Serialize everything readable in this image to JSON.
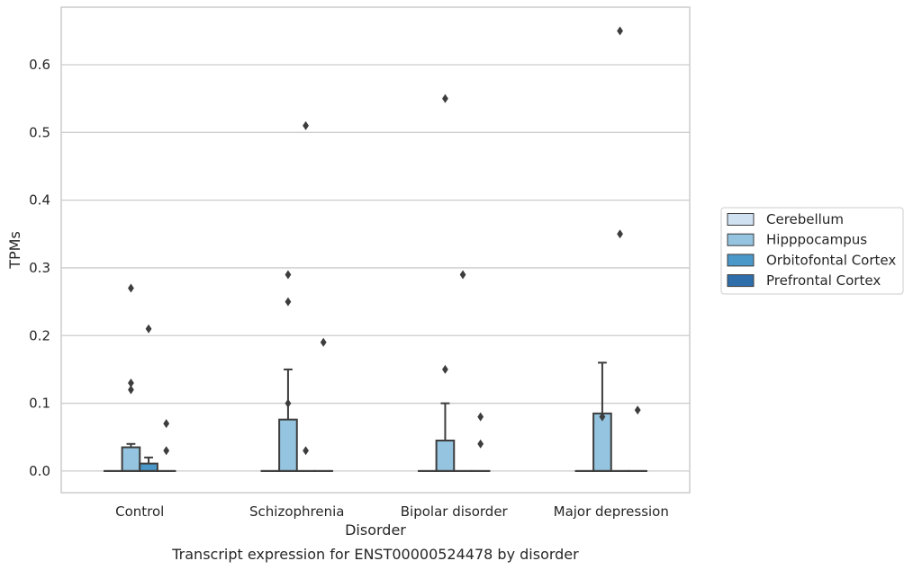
{
  "chart_data": {
    "type": "box",
    "title": "Transcript expression for ENST00000524478 by disorder",
    "xlabel": "Disorder",
    "ylabel": "TPMs",
    "ylim": [
      -0.032,
      0.685
    ],
    "yticks": [
      0.0,
      0.1,
      0.2,
      0.3,
      0.4,
      0.5,
      0.6
    ],
    "ytick_labels": [
      "0.0",
      "0.1",
      "0.2",
      "0.3",
      "0.4",
      "0.5",
      "0.6"
    ],
    "grid": "horizontal",
    "legend_position": "right",
    "categories": [
      "Control",
      "Schizophrenia",
      "Bipolar disorder",
      "Major depression"
    ],
    "series": [
      {
        "name": "Cerebellum",
        "color": "#d0e1f2",
        "boxes": [
          {
            "q1": 0,
            "median": 0,
            "q3": 0,
            "whisker_low": 0,
            "whisker_high": 0,
            "outliers": []
          },
          {
            "q1": 0,
            "median": 0,
            "q3": 0,
            "whisker_low": 0,
            "whisker_high": 0,
            "outliers": []
          },
          {
            "q1": 0,
            "median": 0,
            "q3": 0,
            "whisker_low": 0,
            "whisker_high": 0,
            "outliers": []
          },
          {
            "q1": 0,
            "median": 0,
            "q3": 0,
            "whisker_low": 0,
            "whisker_high": 0,
            "outliers": []
          }
        ]
      },
      {
        "name": "Hipppocampus",
        "color": "#94c4df",
        "boxes": [
          {
            "q1": 0,
            "median": 0,
            "q3": 0.035,
            "whisker_low": 0,
            "whisker_high": 0.04,
            "outliers": [
              0.12,
              0.13,
              0.27
            ]
          },
          {
            "q1": 0,
            "median": 0,
            "q3": 0.076,
            "whisker_low": 0,
            "whisker_high": 0.15,
            "outliers": [
              0.1,
              0.25,
              0.29
            ]
          },
          {
            "q1": 0,
            "median": 0,
            "q3": 0.045,
            "whisker_low": 0,
            "whisker_high": 0.1,
            "outliers": [
              0.15,
              0.55
            ]
          },
          {
            "q1": 0,
            "median": 0,
            "q3": 0.085,
            "whisker_low": 0,
            "whisker_high": 0.16,
            "outliers": [
              0.08
            ]
          }
        ]
      },
      {
        "name": "Orbitofontal Cortex",
        "color": "#4a98c9",
        "boxes": [
          {
            "q1": 0,
            "median": 0,
            "q3": 0.011,
            "whisker_low": 0,
            "whisker_high": 0.02,
            "outliers": [
              0.21
            ]
          },
          {
            "q1": 0,
            "median": 0,
            "q3": 0,
            "whisker_low": 0,
            "whisker_high": 0,
            "outliers": [
              0.03,
              0.51
            ]
          },
          {
            "q1": 0,
            "median": 0,
            "q3": 0,
            "whisker_low": 0,
            "whisker_high": 0,
            "outliers": [
              0.29
            ]
          },
          {
            "q1": 0,
            "median": 0,
            "q3": 0,
            "whisker_low": 0,
            "whisker_high": 0,
            "outliers": [
              0.35,
              0.65
            ]
          }
        ]
      },
      {
        "name": "Prefrontal Cortex",
        "color": "#2e6eab",
        "boxes": [
          {
            "q1": 0,
            "median": 0,
            "q3": 0,
            "whisker_low": 0,
            "whisker_high": 0,
            "outliers": [
              0.03,
              0.07
            ]
          },
          {
            "q1": 0,
            "median": 0,
            "q3": 0,
            "whisker_low": 0,
            "whisker_high": 0,
            "outliers": [
              0.19
            ]
          },
          {
            "q1": 0,
            "median": 0,
            "q3": 0,
            "whisker_low": 0,
            "whisker_high": 0,
            "outliers": [
              0.04,
              0.08
            ]
          },
          {
            "q1": 0,
            "median": 0,
            "q3": 0,
            "whisker_low": 0,
            "whisker_high": 0,
            "outliers": [
              0.09
            ]
          }
        ]
      }
    ]
  }
}
